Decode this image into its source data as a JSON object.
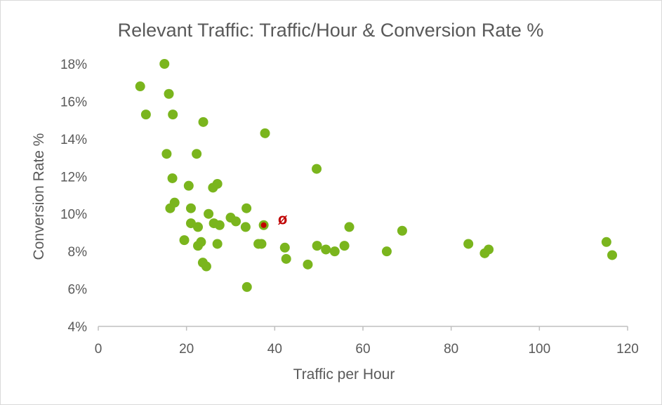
{
  "chart_data": {
    "type": "scatter",
    "title": "Relevant Traffic: Traffic/Hour & Conversion Rate %",
    "xlabel": "Traffic per Hour",
    "ylabel": "Conversion Rate %",
    "xlim": [
      0,
      120
    ],
    "ylim": [
      4,
      18
    ],
    "x_ticks": [
      0,
      20,
      40,
      60,
      80,
      100,
      120
    ],
    "y_ticks": [
      4,
      6,
      8,
      10,
      12,
      14,
      16,
      18
    ],
    "y_tick_suffix": "%",
    "grid": false,
    "colors": {
      "points": "#7ab51d",
      "average": "#c00000",
      "axis": "#bfbfbf"
    },
    "series": [
      {
        "points": [
          [
            9.5,
            16.8
          ],
          [
            10.8,
            15.3
          ],
          [
            15.0,
            18.0
          ],
          [
            16.0,
            16.4
          ],
          [
            16.9,
            15.3
          ],
          [
            15.5,
            13.2
          ],
          [
            16.8,
            11.9
          ],
          [
            17.3,
            10.6
          ],
          [
            16.3,
            10.3
          ],
          [
            20.5,
            11.5
          ],
          [
            21.0,
            10.3
          ],
          [
            21.0,
            9.5
          ],
          [
            22.3,
            13.2
          ],
          [
            22.6,
            9.3
          ],
          [
            23.8,
            14.9
          ],
          [
            19.5,
            8.6
          ],
          [
            23.3,
            8.5
          ],
          [
            22.6,
            8.3
          ],
          [
            23.7,
            7.4
          ],
          [
            24.5,
            7.2
          ],
          [
            25.0,
            10.0
          ],
          [
            26.0,
            11.4
          ],
          [
            27.0,
            11.6
          ],
          [
            26.2,
            9.5
          ],
          [
            27.5,
            9.4
          ],
          [
            27.0,
            8.4
          ],
          [
            30.0,
            9.8
          ],
          [
            31.2,
            9.6
          ],
          [
            33.6,
            10.3
          ],
          [
            33.4,
            9.3
          ],
          [
            36.3,
            8.4
          ],
          [
            37.0,
            8.4
          ],
          [
            33.7,
            6.1
          ],
          [
            37.8,
            14.3
          ],
          [
            42.3,
            8.2
          ],
          [
            42.6,
            7.6
          ],
          [
            47.5,
            7.3
          ],
          [
            49.5,
            12.4
          ],
          [
            49.6,
            8.3
          ],
          [
            51.6,
            8.1
          ],
          [
            53.6,
            8.0
          ],
          [
            55.8,
            8.3
          ],
          [
            56.9,
            9.3
          ],
          [
            65.4,
            8.0
          ],
          [
            68.9,
            9.1
          ],
          [
            83.9,
            8.4
          ],
          [
            87.6,
            7.9
          ],
          [
            88.5,
            8.1
          ],
          [
            115.2,
            8.5
          ],
          [
            116.5,
            7.8
          ]
        ]
      }
    ],
    "average": {
      "x": 37.5,
      "y": 9.4,
      "label": "ø"
    }
  }
}
